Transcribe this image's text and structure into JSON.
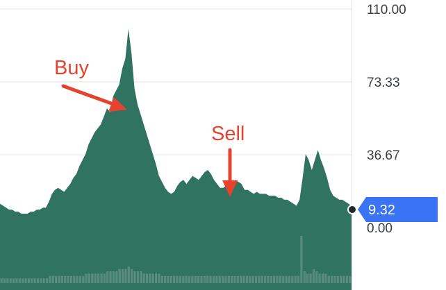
{
  "chart_data": {
    "type": "area",
    "title": "",
    "xlabel": "",
    "ylabel": "",
    "ylim": [
      0,
      110
    ],
    "y_ticks": [
      "110.00",
      "73.33",
      "36.67",
      "0.00"
    ],
    "y_tick_values": [
      110,
      73.33,
      36.67,
      0
    ],
    "grid": true,
    "grid_axis": "y",
    "legend": "none",
    "series": [
      {
        "fill_color": "#2f7360",
        "values": [
          12,
          11,
          10,
          9,
          9,
          8,
          8,
          7,
          7,
          7,
          8,
          8,
          9,
          9,
          10,
          10,
          13,
          17,
          19,
          20,
          19,
          18,
          20,
          22,
          25,
          27,
          31,
          34,
          37,
          42,
          45,
          48,
          50,
          52,
          56,
          60,
          58,
          66,
          69,
          72,
          80,
          85,
          100,
          88,
          70,
          62,
          57,
          52,
          47,
          42,
          37,
          32,
          26,
          23,
          20,
          18,
          17,
          18,
          21,
          23,
          24,
          22,
          24,
          26,
          25,
          24,
          26,
          28,
          29,
          27,
          24,
          22,
          20,
          20,
          21,
          22,
          23,
          24,
          23,
          22,
          19,
          19,
          18,
          17,
          18,
          17,
          17,
          17,
          16,
          16,
          16,
          15,
          15,
          14,
          14,
          13,
          12,
          11,
          14,
          25,
          37,
          34,
          29,
          34,
          39,
          34,
          30,
          25,
          19,
          16,
          15,
          14,
          14,
          13,
          12,
          11
        ]
      }
    ],
    "volume": [
      2,
      2,
      2,
      2,
      2,
      2,
      2,
      2,
      2,
      2,
      2,
      2,
      2,
      2,
      2,
      2,
      3,
      3,
      3,
      3,
      3,
      3,
      3,
      3,
      3,
      3,
      3,
      3,
      4,
      4,
      4,
      4,
      4,
      4,
      4,
      5,
      5,
      5,
      5,
      6,
      6,
      6,
      7,
      6,
      5,
      5,
      5,
      4,
      4,
      4,
      4,
      4,
      4,
      3,
      3,
      3,
      3,
      3,
      3,
      3,
      3,
      3,
      3,
      3,
      3,
      3,
      3,
      3,
      3,
      3,
      3,
      3,
      3,
      3,
      3,
      3,
      3,
      3,
      3,
      3,
      3,
      3,
      3,
      3,
      3,
      3,
      3,
      3,
      3,
      3,
      3,
      3,
      3,
      3,
      3,
      3,
      3,
      3,
      3,
      20,
      5,
      4,
      4,
      6,
      5,
      4,
      4,
      4,
      3,
      3,
      3,
      3,
      3,
      3,
      3,
      3
    ],
    "current_value": "9.32",
    "annotations": [
      {
        "text": "Buy",
        "color": "#e5432f"
      },
      {
        "text": "Sell",
        "color": "#e5432f"
      }
    ],
    "badge_color": "#3b73f5",
    "dot_color": "#1f2a2a",
    "grid_color": "#e3e3e3",
    "volume_color": "#5a8c7e"
  }
}
